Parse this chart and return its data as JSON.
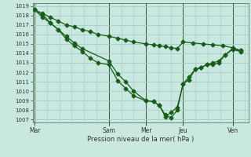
{
  "background_color": "#c8e8e0",
  "grid_color": "#aacccc",
  "line_color": "#1a5c1a",
  "ylim": [
    1007,
    1019
  ],
  "ytick_min": 1007,
  "ytick_max": 1019,
  "xlabel": "Pression niveau de la mer( hPa )",
  "day_labels": [
    "Mar",
    "Sam",
    "Mer",
    "Jeu",
    "Ven"
  ],
  "day_positions": [
    0.0,
    0.375,
    0.5625,
    0.75,
    1.0
  ],
  "xmax": 1.08,
  "line1_x": [
    0.0,
    0.04,
    0.08,
    0.12,
    0.16,
    0.2,
    0.24,
    0.28,
    0.32,
    0.375,
    0.42,
    0.46,
    0.5,
    0.5625,
    0.6,
    0.63,
    0.66,
    0.69,
    0.72,
    0.75,
    0.78,
    0.81,
    0.84,
    0.87,
    0.9,
    0.93,
    0.96,
    1.0,
    1.04
  ],
  "line1_y": [
    1018.6,
    1018.1,
    1017.2,
    1016.5,
    1015.5,
    1014.8,
    1014.2,
    1013.5,
    1013.0,
    1012.8,
    1011.1,
    1010.3,
    1009.5,
    1009.0,
    1008.9,
    1008.5,
    1007.3,
    1007.8,
    1008.3,
    1010.8,
    1011.2,
    1012.3,
    1012.5,
    1012.8,
    1012.8,
    1013.0,
    1013.8,
    1014.5,
    1014.3
  ],
  "line2_x": [
    0.0,
    0.04,
    0.08,
    0.12,
    0.16,
    0.2,
    0.24,
    0.375,
    0.42,
    0.46,
    0.5,
    0.5625,
    0.6,
    0.63,
    0.66,
    0.69,
    0.72,
    0.75,
    0.78,
    0.81,
    0.84,
    0.87,
    0.9,
    0.93,
    0.96,
    1.0,
    1.04
  ],
  "line2_y": [
    1018.6,
    1017.8,
    1017.2,
    1016.5,
    1015.8,
    1015.1,
    1014.5,
    1013.2,
    1011.8,
    1011.0,
    1010.0,
    1009.0,
    1008.9,
    1008.5,
    1007.5,
    1007.2,
    1008.0,
    1010.8,
    1011.5,
    1012.3,
    1012.5,
    1012.8,
    1013.0,
    1013.2,
    1013.8,
    1014.4,
    1014.2
  ],
  "line3_x": [
    0.0,
    0.04,
    0.08,
    0.12,
    0.16,
    0.2,
    0.24,
    0.28,
    0.32,
    0.375,
    0.42,
    0.46,
    0.5,
    0.5625,
    0.6,
    0.63,
    0.66,
    0.69,
    0.72,
    0.75,
    0.8,
    0.85,
    0.9,
    0.95,
    1.0,
    1.04
  ],
  "line3_y": [
    1018.6,
    1018.2,
    1017.8,
    1017.4,
    1017.0,
    1016.8,
    1016.5,
    1016.3,
    1016.0,
    1015.8,
    1015.6,
    1015.4,
    1015.2,
    1015.0,
    1014.9,
    1014.8,
    1014.7,
    1014.6,
    1014.5,
    1015.2,
    1015.1,
    1015.0,
    1014.9,
    1014.8,
    1014.6,
    1014.3
  ]
}
